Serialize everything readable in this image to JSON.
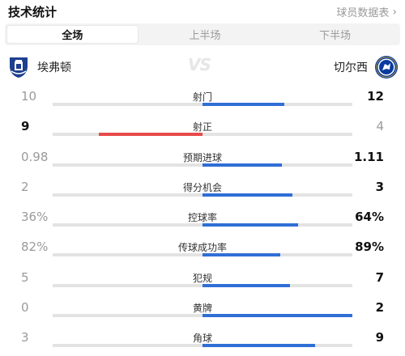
{
  "header": {
    "title": "技术统计",
    "detail_link": "球员数据表"
  },
  "tabs": [
    {
      "label": "全场",
      "active": true
    },
    {
      "label": "上半场",
      "active": false
    },
    {
      "label": "下半场",
      "active": false
    }
  ],
  "teams": {
    "home": {
      "name": "埃弗顿",
      "badge": "everton-badge-icon"
    },
    "vs": "VS",
    "away": {
      "name": "切尔西",
      "badge": "chelsea-badge-icon"
    }
  },
  "colors": {
    "home_accent": "#e84a4a",
    "away_accent": "#2f6fd6",
    "track": "#e3e3e3",
    "lead_text": "#111111",
    "trail_text": "#9a9a9a"
  },
  "stats": [
    {
      "label": "射门",
      "home": "10",
      "away": "12",
      "home_num": 10,
      "away_num": 12
    },
    {
      "label": "射正",
      "home": "9",
      "away": "4",
      "home_num": 9,
      "away_num": 4
    },
    {
      "label": "预期进球",
      "home": "0.98",
      "away": "1.11",
      "home_num": 0.98,
      "away_num": 1.11
    },
    {
      "label": "得分机会",
      "home": "2",
      "away": "3",
      "home_num": 2,
      "away_num": 3
    },
    {
      "label": "控球率",
      "home": "36%",
      "away": "64%",
      "home_num": 36,
      "away_num": 64
    },
    {
      "label": "传球成功率",
      "home": "82%",
      "away": "89%",
      "home_num": 82,
      "away_num": 89
    },
    {
      "label": "犯规",
      "home": "5",
      "away": "7",
      "home_num": 5,
      "away_num": 7
    },
    {
      "label": "黄牌",
      "home": "0",
      "away": "2",
      "home_num": 0,
      "away_num": 2
    },
    {
      "label": "角球",
      "home": "3",
      "away": "9",
      "home_num": 3,
      "away_num": 9
    }
  ]
}
